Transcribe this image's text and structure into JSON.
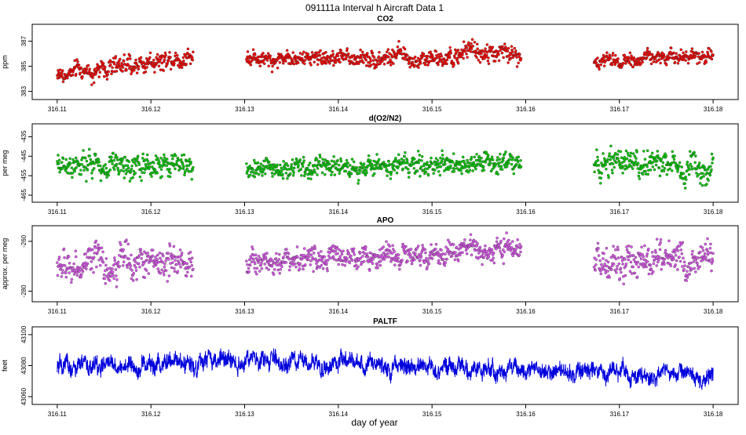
{
  "figure": {
    "title": "091111a   Interval h Aircraft Data 1",
    "xlabel": "day of year"
  },
  "chart_data": [
    {
      "id": "co2",
      "type": "scatter",
      "title": "CO2",
      "xlabel": "",
      "ylabel": "ppm",
      "xlim": [
        316.108,
        316.182
      ],
      "ylim": [
        382.6,
        388.1
      ],
      "x_ticks": [
        "316.11",
        "316.12",
        "316.13",
        "316.14",
        "316.15",
        "316.16",
        "316.17",
        "316.18"
      ],
      "y_ticks": [
        "383",
        "385",
        "387"
      ],
      "color": "#ff0000",
      "marker": "open-circle",
      "grid": false,
      "segments": [
        {
          "x_start": 316.11,
          "x_end": 316.1245,
          "y_start": 384.3,
          "y_end": 385.8,
          "mean": 385.2,
          "spread": 0.5
        },
        {
          "x_start": 316.1302,
          "x_end": 316.1528,
          "y_start": 385.7,
          "y_end": 385.6,
          "mean": 385.8,
          "spread": 0.45
        },
        {
          "x_start": 316.1528,
          "x_end": 316.1595,
          "y_start": 386.3,
          "y_end": 385.9,
          "mean": 386.1,
          "spread": 0.5
        },
        {
          "x_start": 316.1673,
          "x_end": 316.18,
          "y_start": 385.4,
          "y_end": 385.9,
          "mean": 385.7,
          "spread": 0.4
        }
      ]
    },
    {
      "id": "o2n2",
      "type": "scatter",
      "title": "d(O2/N2)",
      "xlabel": "",
      "ylabel": "per meg",
      "xlim": [
        316.108,
        316.182
      ],
      "ylim": [
        -467,
        -430
      ],
      "x_ticks": [
        "316.11",
        "316.12",
        "316.13",
        "316.14",
        "316.15",
        "316.16",
        "316.17",
        "316.18"
      ],
      "y_ticks": [
        "-435",
        "-445",
        "-455",
        "-465"
      ],
      "color": "#00cc00",
      "marker": "open-circle",
      "grid": false,
      "segments": [
        {
          "x_start": 316.11,
          "x_end": 316.1245,
          "y_start": -449,
          "y_end": -450,
          "mean": -450,
          "spread": 4.5
        },
        {
          "x_start": 316.1302,
          "x_end": 316.1595,
          "y_start": -452,
          "y_end": -448,
          "mean": -449,
          "spread": 3.5
        },
        {
          "x_start": 316.1673,
          "x_end": 316.18,
          "y_start": -449,
          "y_end": -451,
          "mean": -450,
          "spread": 4.5
        }
      ]
    },
    {
      "id": "apo",
      "type": "scatter",
      "title": "APO",
      "xlabel": "",
      "ylabel": "approx. per meg",
      "xlim": [
        316.108,
        316.182
      ],
      "ylim": [
        -283,
        -255
      ],
      "x_ticks": [
        "316.11",
        "316.12",
        "316.13",
        "316.14",
        "316.15",
        "316.16",
        "316.17",
        "316.18"
      ],
      "y_ticks": [
        "-260",
        "-280"
      ],
      "color": "#dd55ee",
      "marker": "open-circle",
      "grid": false,
      "segments": [
        {
          "x_start": 316.11,
          "x_end": 316.1245,
          "y_start": -270,
          "y_end": -268,
          "mean": -269,
          "spread": 4.5
        },
        {
          "x_start": 316.1302,
          "x_end": 316.1595,
          "y_start": -268,
          "y_end": -264,
          "mean": -266,
          "spread": 3.0
        },
        {
          "x_start": 316.1673,
          "x_end": 316.18,
          "y_start": -268,
          "y_end": -267,
          "mean": -267,
          "spread": 4.5
        }
      ]
    },
    {
      "id": "paltf",
      "type": "line",
      "title": "PALTF",
      "xlabel": "day of year",
      "ylabel": "feet",
      "xlim": [
        316.108,
        316.182
      ],
      "ylim": [
        43057,
        43103
      ],
      "x_ticks": [
        "316.11",
        "316.12",
        "316.13",
        "316.14",
        "316.15",
        "316.16",
        "316.17",
        "316.18"
      ],
      "y_ticks": [
        "43100",
        "43080",
        "43060"
      ],
      "color": "#0000dd",
      "grid": false,
      "segments": [
        {
          "x_start": 316.11,
          "x_end": 316.13,
          "y_start": 43078,
          "y_end": 43083,
          "mean": 43080,
          "spread": 5.5
        },
        {
          "x_start": 316.13,
          "x_end": 316.18,
          "y_start": 43083,
          "y_end": 43073,
          "mean": 43076,
          "spread": 5.0
        }
      ]
    }
  ]
}
